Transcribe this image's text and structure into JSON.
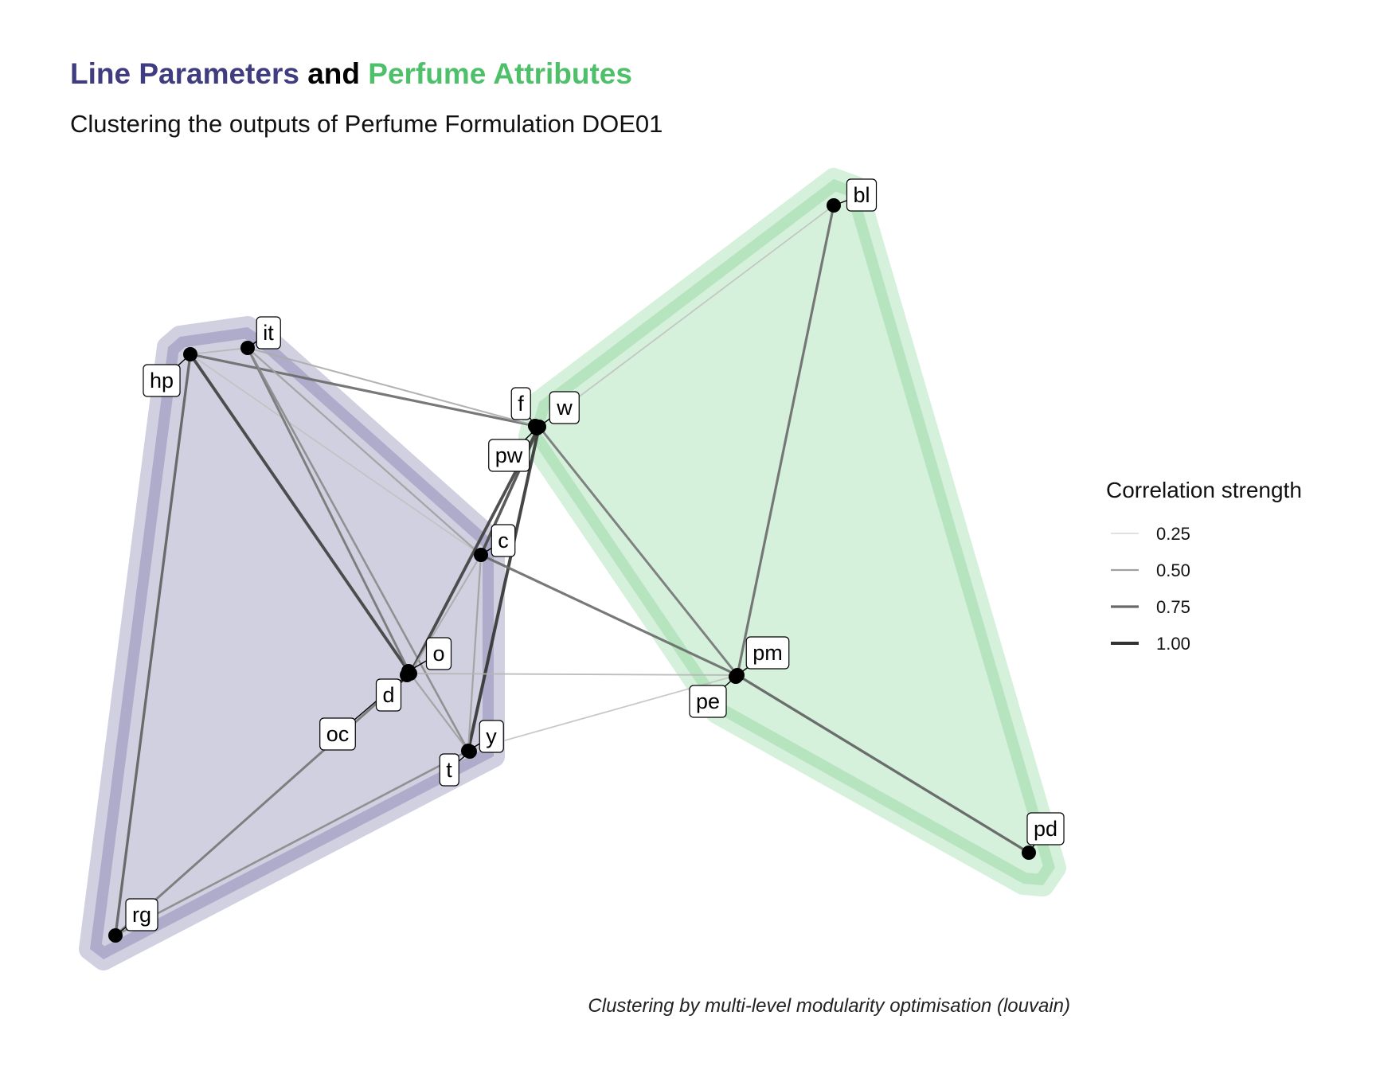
{
  "title": {
    "part1": "Line Parameters",
    "part2": " and ",
    "part3": "Perfume Attributes",
    "color1": "#3F3C80",
    "color2": "#000000",
    "color3": "#4FC06A"
  },
  "subtitle": "Clustering the outputs of Perfume Formulation DOE01",
  "caption": "Clustering by multi-level modularity optimisation (louvain)",
  "clusters": [
    {
      "name": "Line Parameters",
      "color": "#3F3C80",
      "members": [
        "it",
        "hp",
        "rg",
        "t",
        "y",
        "c",
        "d",
        "oc",
        "o"
      ]
    },
    {
      "name": "Perfume Attributes",
      "color": "#4FC06A",
      "members": [
        "bl",
        "w",
        "f",
        "pw",
        "pm",
        "pe",
        "pd"
      ]
    }
  ],
  "nodes": [
    {
      "id": "bl"
    },
    {
      "id": "it"
    },
    {
      "id": "hp"
    },
    {
      "id": "f"
    },
    {
      "id": "w"
    },
    {
      "id": "pw"
    },
    {
      "id": "c"
    },
    {
      "id": "o"
    },
    {
      "id": "pm"
    },
    {
      "id": "d"
    },
    {
      "id": "pe"
    },
    {
      "id": "oc"
    },
    {
      "id": "y"
    },
    {
      "id": "t"
    },
    {
      "id": "pd"
    },
    {
      "id": "rg"
    }
  ],
  "edges": [
    {
      "source": "hp",
      "target": "d",
      "strength": 0.95
    },
    {
      "source": "hp",
      "target": "rg",
      "strength": 0.8
    },
    {
      "source": "hp",
      "target": "w",
      "strength": 0.75
    },
    {
      "source": "hp",
      "target": "c",
      "strength": 0.35
    },
    {
      "source": "hp",
      "target": "it",
      "strength": 0.4
    },
    {
      "source": "it",
      "target": "d",
      "strength": 0.7
    },
    {
      "source": "it",
      "target": "y",
      "strength": 0.6
    },
    {
      "source": "it",
      "target": "w",
      "strength": 0.45
    },
    {
      "source": "it",
      "target": "c",
      "strength": 0.5
    },
    {
      "source": "w",
      "target": "bl",
      "strength": 0.35
    },
    {
      "source": "w",
      "target": "y",
      "strength": 1.0
    },
    {
      "source": "w",
      "target": "d",
      "strength": 0.95
    },
    {
      "source": "w",
      "target": "c",
      "strength": 0.9
    },
    {
      "source": "w",
      "target": "pm",
      "strength": 0.7
    },
    {
      "source": "c",
      "target": "pm",
      "strength": 0.75
    },
    {
      "source": "c",
      "target": "y",
      "strength": 0.5
    },
    {
      "source": "c",
      "target": "d",
      "strength": 0.45
    },
    {
      "source": "bl",
      "target": "pm",
      "strength": 0.75
    },
    {
      "source": "pm",
      "target": "pd",
      "strength": 0.8
    },
    {
      "source": "d",
      "target": "pm",
      "strength": 0.4
    },
    {
      "source": "d",
      "target": "rg",
      "strength": 0.7
    },
    {
      "source": "d",
      "target": "y",
      "strength": 0.5
    },
    {
      "source": "rg",
      "target": "y",
      "strength": 0.6
    },
    {
      "source": "y",
      "target": "pm",
      "strength": 0.35
    }
  ],
  "legend": {
    "title": "Correlation strength",
    "entries": [
      {
        "label": "0.25",
        "value": 0.25
      },
      {
        "label": "0.50",
        "value": 0.5
      },
      {
        "label": "0.75",
        "value": 0.75
      },
      {
        "label": "1.00",
        "value": 1.0
      }
    ]
  }
}
